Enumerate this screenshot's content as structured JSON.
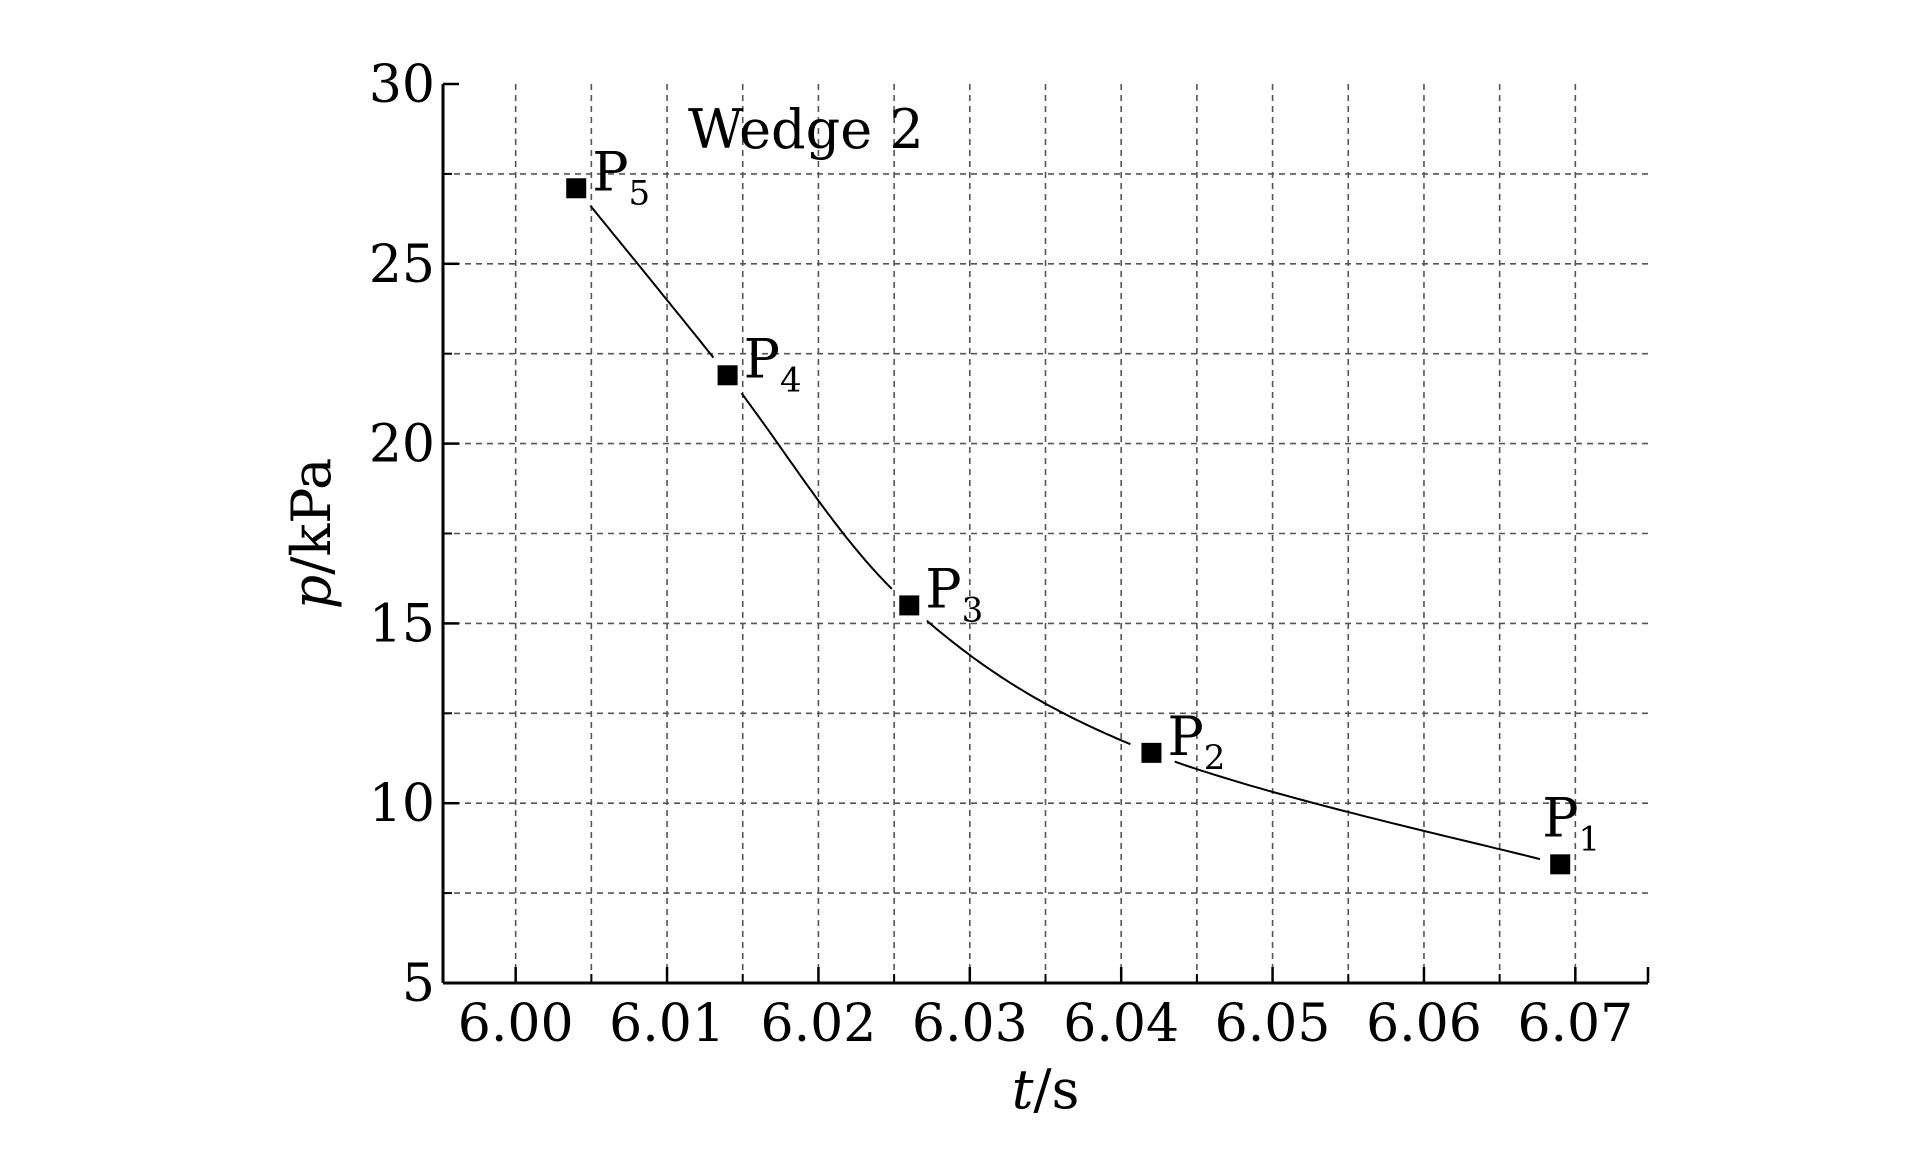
{
  "chart_data": {
    "type": "line",
    "title": "Wedge 2",
    "xlabel": {
      "italic": "t",
      "rest": "/s"
    },
    "ylabel": {
      "italic": "p",
      "rest": "/kPa"
    },
    "xlim": [
      5.9952,
      6.0748
    ],
    "ylim": [
      5,
      30
    ],
    "xticks": [
      6.0,
      6.01,
      6.02,
      6.03,
      6.04,
      6.05,
      6.06,
      6.07
    ],
    "xtick_labels": [
      "6.00",
      "6.01",
      "6.02",
      "6.03",
      "6.04",
      "6.05",
      "6.06",
      "6.07"
    ],
    "yticks": [
      5,
      10,
      15,
      20,
      25,
      30
    ],
    "ytick_labels": [
      "5",
      "10",
      "15",
      "20",
      "25",
      "30"
    ],
    "grid": true,
    "points": [
      {
        "label": "P",
        "sub": "5",
        "x": 6.004,
        "y": 27.1
      },
      {
        "label": "P",
        "sub": "4",
        "x": 6.014,
        "y": 21.9
      },
      {
        "label": "P",
        "sub": "3",
        "x": 6.026,
        "y": 15.5
      },
      {
        "label": "P",
        "sub": "2",
        "x": 6.042,
        "y": 11.4
      },
      {
        "label": "P",
        "sub": "1",
        "x": 6.069,
        "y": 8.3
      }
    ]
  }
}
